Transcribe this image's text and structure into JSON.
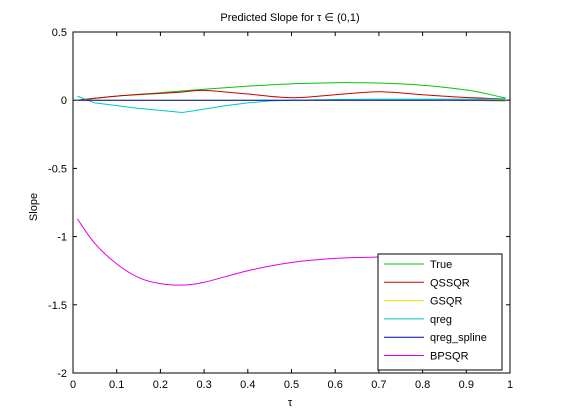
{
  "chart_data": {
    "type": "line",
    "title": "Predicted Slope for τ ∈ (0,1)",
    "xlabel": "τ",
    "ylabel": "Slope",
    "xlim": [
      0,
      1
    ],
    "ylim": [
      -2,
      0.5
    ],
    "xticks": [
      0,
      0.1,
      0.2,
      0.3,
      0.4,
      0.5,
      0.6,
      0.7,
      0.8,
      0.9,
      1
    ],
    "xtick_labels": [
      "0",
      "0.1",
      "0.2",
      "0.3",
      "0.4",
      "0.5",
      "0.6",
      "0.7",
      "0.8",
      "0.9",
      "1"
    ],
    "yticks": [
      -2,
      -1.5,
      -1,
      -0.5,
      0,
      0.5
    ],
    "ytick_labels": [
      "-2",
      "-1.5",
      "-1",
      "-0.5",
      "0",
      "0.5"
    ],
    "grid": false,
    "legend_position": "bottom-right",
    "series": [
      {
        "name": "True",
        "color": "#00c800",
        "x": [
          0.01,
          0.1,
          0.2,
          0.3,
          0.4,
          0.5,
          0.6,
          0.65,
          0.7,
          0.8,
          0.9,
          0.95,
          0.99
        ],
        "y": [
          0.0,
          0.03,
          0.055,
          0.08,
          0.103,
          0.12,
          0.128,
          0.128,
          0.126,
          0.11,
          0.075,
          0.045,
          0.015
        ]
      },
      {
        "name": "QSSQR",
        "color": "#c80000",
        "x": [
          0.01,
          0.1,
          0.2,
          0.25,
          0.3,
          0.4,
          0.5,
          0.6,
          0.7,
          0.8,
          0.9,
          0.99
        ],
        "y": [
          0.0,
          0.03,
          0.05,
          0.06,
          0.072,
          0.045,
          0.018,
          0.04,
          0.062,
          0.04,
          0.02,
          0.01
        ]
      },
      {
        "name": "GSQR",
        "color": "#e6e600",
        "x": [
          0.01,
          0.1,
          0.2,
          0.3,
          0.4,
          0.5,
          0.6,
          0.7,
          0.8,
          0.9,
          0.99
        ],
        "y": [
          0.0,
          0.0,
          0.0,
          0.0,
          0.0,
          0.0,
          0.0,
          0.0,
          0.0,
          0.0,
          -0.01
        ]
      },
      {
        "name": "qreg",
        "color": "#00c8c8",
        "x": [
          0.01,
          0.05,
          0.1,
          0.15,
          0.2,
          0.25,
          0.3,
          0.35,
          0.4,
          0.45,
          0.5,
          0.6,
          0.7,
          0.8,
          0.9,
          0.99
        ],
        "y": [
          0.03,
          -0.02,
          -0.04,
          -0.06,
          -0.075,
          -0.09,
          -0.065,
          -0.04,
          -0.02,
          -0.005,
          0.0,
          0.005,
          0.008,
          0.008,
          0.008,
          0.01
        ]
      },
      {
        "name": "qreg_spline",
        "color": "#0000b4",
        "x": [
          0.01,
          0.1,
          0.2,
          0.3,
          0.4,
          0.5,
          0.6,
          0.7,
          0.8,
          0.9,
          0.99
        ],
        "y": [
          0.0,
          0.0,
          0.0,
          0.0,
          0.0,
          0.0,
          0.0,
          0.0,
          0.0,
          0.0,
          0.0
        ]
      },
      {
        "name": "BPSQR",
        "color": "#e600e6",
        "x": [
          0.01,
          0.05,
          0.1,
          0.15,
          0.2,
          0.25,
          0.3,
          0.4,
          0.5,
          0.6,
          0.7
        ],
        "y": [
          -0.87,
          -1.05,
          -1.2,
          -1.3,
          -1.345,
          -1.355,
          -1.335,
          -1.25,
          -1.19,
          -1.16,
          -1.15
        ]
      }
    ]
  }
}
